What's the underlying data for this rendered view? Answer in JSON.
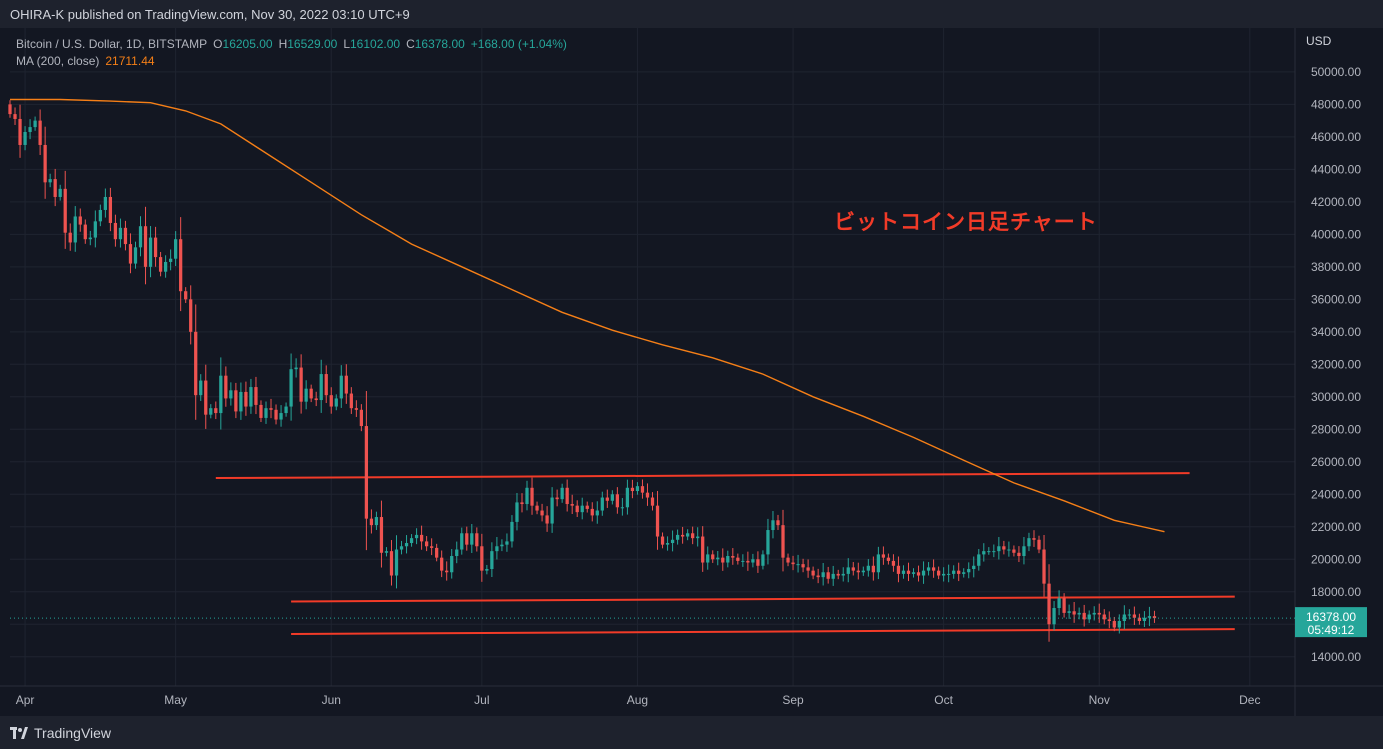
{
  "header": {
    "publisher": "OHIRA-K published on TradingView.com, Nov 30, 2022 03:10 UTC+9"
  },
  "legend": {
    "symbol": "Bitcoin / U.S. Dollar, 1D, BITSTAMP",
    "o_label": "O",
    "o_value": "16205.00",
    "h_label": "H",
    "h_value": "16529.00",
    "l_label": "L",
    "l_value": "16102.00",
    "c_label": "C",
    "c_value": "16378.00",
    "change": "+168.00 (+1.04%)",
    "ma_label": "MA (200, close)",
    "ma_value": "21711.44"
  },
  "annotation": "ビットコイン日足チャート",
  "footer": {
    "brand": "TradingView"
  },
  "colors": {
    "up": "#26a69a",
    "down": "#ef5350",
    "ma": "#f57f17",
    "line": "#f23b28",
    "bg": "#131722"
  },
  "chart_data": {
    "type": "candlestick",
    "currency_label": "USD",
    "last_price": "16378.00",
    "countdown": "05:49:12",
    "ylim": [
      12200,
      52700
    ],
    "y_ticks": [
      14000,
      16000,
      18000,
      20000,
      22000,
      24000,
      26000,
      28000,
      30000,
      32000,
      34000,
      36000,
      38000,
      40000,
      42000,
      44000,
      46000,
      48000,
      50000
    ],
    "y_tick_labels": [
      "14000.00",
      "16000.00",
      "18000.00",
      "20000.00",
      "22000.00",
      "24000.00",
      "26000.00",
      "28000.00",
      "30000.00",
      "32000.00",
      "34000.00",
      "36000.00",
      "38000.00",
      "40000.00",
      "42000.00",
      "44000.00",
      "46000.00",
      "48000.00",
      "50000.00"
    ],
    "x_ticks": [
      {
        "label": "Apr",
        "date": "2022-04-01"
      },
      {
        "label": "May",
        "date": "2022-05-01"
      },
      {
        "label": "Jun",
        "date": "2022-06-01"
      },
      {
        "label": "Jul",
        "date": "2022-07-01"
      },
      {
        "label": "Aug",
        "date": "2022-08-01"
      },
      {
        "label": "Sep",
        "date": "2022-09-01"
      },
      {
        "label": "Oct",
        "date": "2022-10-01"
      },
      {
        "label": "Nov",
        "date": "2022-11-01"
      },
      {
        "label": "Dec",
        "date": "2022-12-01"
      }
    ],
    "x_range": [
      "2022-03-29",
      "2022-12-10"
    ],
    "candles_start": "2022-03-29",
    "closes": [
      47400,
      47100,
      45500,
      46300,
      46600,
      47000,
      45500,
      43200,
      43400,
      42300,
      42800,
      40100,
      39500,
      41100,
      40600,
      39700,
      39800,
      40800,
      41500,
      42300,
      40700,
      39700,
      40400,
      39400,
      38200,
      39200,
      40500,
      38000,
      39800,
      38600,
      37700,
      38300,
      38500,
      39700,
      36500,
      36000,
      34000,
      30100,
      31000,
      28900,
      29300,
      29000,
      31300,
      29900,
      30400,
      29100,
      30300,
      29400,
      30600,
      29500,
      28700,
      29300,
      29200,
      28600,
      29000,
      29400,
      31700,
      31800,
      29700,
      30500,
      29900,
      29800,
      31400,
      30100,
      29400,
      29900,
      31300,
      30200,
      29300,
      29200,
      28200,
      22500,
      22100,
      22600,
      20400,
      20500,
      19000,
      20600,
      20800,
      21000,
      21300,
      21500,
      21100,
      20800,
      20700,
      20100,
      19300,
      19200,
      20200,
      20600,
      21600,
      20900,
      21600,
      20800,
      19300,
      19400,
      20500,
      20800,
      20900,
      21100,
      22300,
      23500,
      23400,
      24400,
      23300,
      23000,
      22700,
      22200,
      23800,
      23700,
      24400,
      23400,
      23300,
      22900,
      23300,
      23100,
      22700,
      23000,
      23800,
      23600,
      24000,
      23200,
      23200,
      24400,
      24200,
      24500,
      24100,
      23800,
      23300,
      21400,
      20900,
      21000,
      21200,
      21500,
      21400,
      21600,
      21300,
      21400,
      19800,
      20300,
      20000,
      20100,
      19800,
      20200,
      20100,
      19900,
      19900,
      19800,
      20000,
      19600,
      20300,
      21800,
      22400,
      22100,
      20100,
      19800,
      19700,
      19700,
      19500,
      19300,
      19000,
      18900,
      19200,
      18800,
      19100,
      19000,
      19100,
      19500,
      19300,
      19200,
      19300,
      19600,
      19200,
      20300,
      20100,
      19900,
      19600,
      19100,
      19300,
      19100,
      19200,
      19000,
      19300,
      19500,
      19300,
      19000,
      19100,
      19100,
      19300,
      19100,
      19200,
      19400,
      19600,
      20300,
      20500,
      20500,
      20500,
      20800,
      20600,
      20600,
      20400,
      20200,
      20800,
      21300,
      21200,
      20600,
      18500,
      16000,
      17000,
      17600,
      16700,
      16800,
      16600,
      16700,
      16300,
      16600,
      16700,
      16600,
      16300,
      16200,
      15800,
      16200,
      16600,
      16600,
      16400,
      16200,
      16400,
      16500,
      16378
    ],
    "ma200": [
      [
        0,
        48300
      ],
      [
        10,
        48300
      ],
      [
        20,
        48200
      ],
      [
        28,
        48100
      ],
      [
        35,
        47600
      ],
      [
        42,
        46800
      ],
      [
        50,
        45200
      ],
      [
        60,
        43200
      ],
      [
        70,
        41200
      ],
      [
        80,
        39400
      ],
      [
        90,
        38000
      ],
      [
        100,
        36600
      ],
      [
        110,
        35200
      ],
      [
        120,
        34100
      ],
      [
        130,
        33200
      ],
      [
        140,
        32400
      ],
      [
        150,
        31400
      ],
      [
        160,
        30000
      ],
      [
        170,
        28800
      ],
      [
        180,
        27500
      ],
      [
        190,
        26100
      ],
      [
        200,
        24700
      ],
      [
        210,
        23600
      ],
      [
        220,
        22400
      ],
      [
        230,
        21700
      ]
    ],
    "levels": [
      {
        "name": "resistance-line",
        "from": [
          41,
          25000
        ],
        "to": [
          235,
          25300
        ]
      },
      {
        "name": "support-upper-line",
        "from": [
          56,
          17400
        ],
        "to": [
          244,
          17700
        ]
      },
      {
        "name": "support-lower-line",
        "from": [
          56,
          15400
        ],
        "to": [
          244,
          15700
        ]
      }
    ]
  }
}
